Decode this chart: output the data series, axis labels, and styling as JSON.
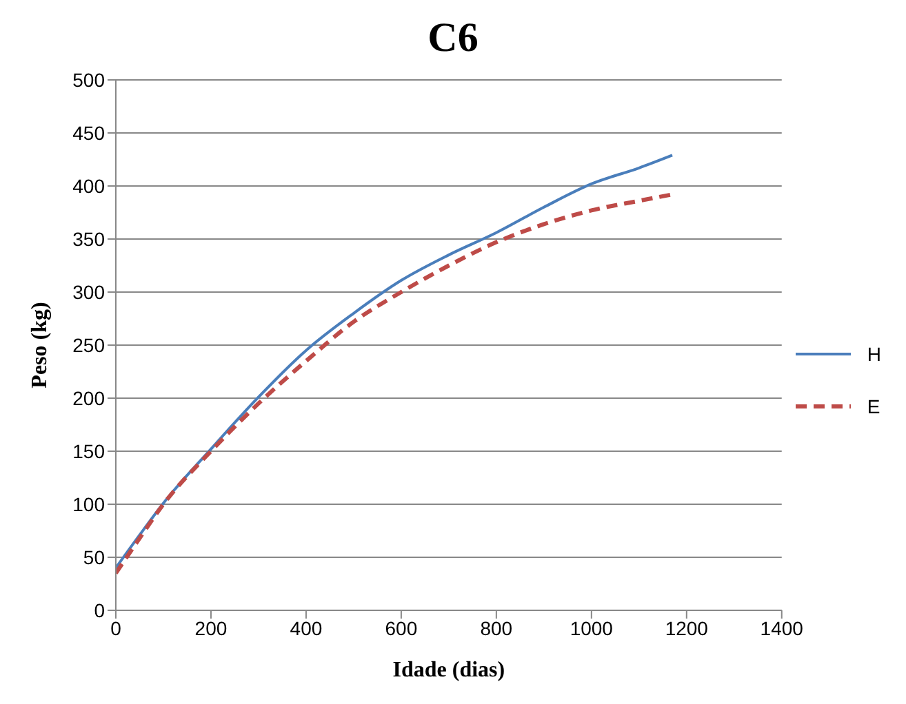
{
  "chart_data": {
    "type": "line",
    "title": "C6",
    "xlabel": "Idade (dias)",
    "ylabel": "Peso (kg)",
    "x": [
      0,
      50,
      100,
      200,
      300,
      400,
      500,
      600,
      700,
      800,
      900,
      1000,
      1100,
      1170
    ],
    "series": [
      {
        "name": "H",
        "color": "#4a7ebb",
        "line_style": "solid",
        "values": [
          40,
          71,
          101,
          152,
          201,
          245,
          280,
          311,
          335,
          356,
          380,
          402,
          417,
          429
        ]
      },
      {
        "name": "E",
        "color": "#be4b48",
        "line_style": "dashed",
        "values": [
          35,
          68,
          100,
          150,
          195,
          235,
          272,
          300,
          325,
          347,
          364,
          377,
          386,
          392
        ]
      }
    ],
    "xlim": [
      0,
      1400
    ],
    "xticks": [
      0,
      200,
      400,
      600,
      800,
      1000,
      1200,
      1400
    ],
    "ylim": [
      0,
      500
    ],
    "yticks": [
      0,
      50,
      100,
      150,
      200,
      250,
      300,
      350,
      400,
      450,
      500
    ],
    "grid": "y",
    "legend": "right",
    "marker": "none"
  }
}
